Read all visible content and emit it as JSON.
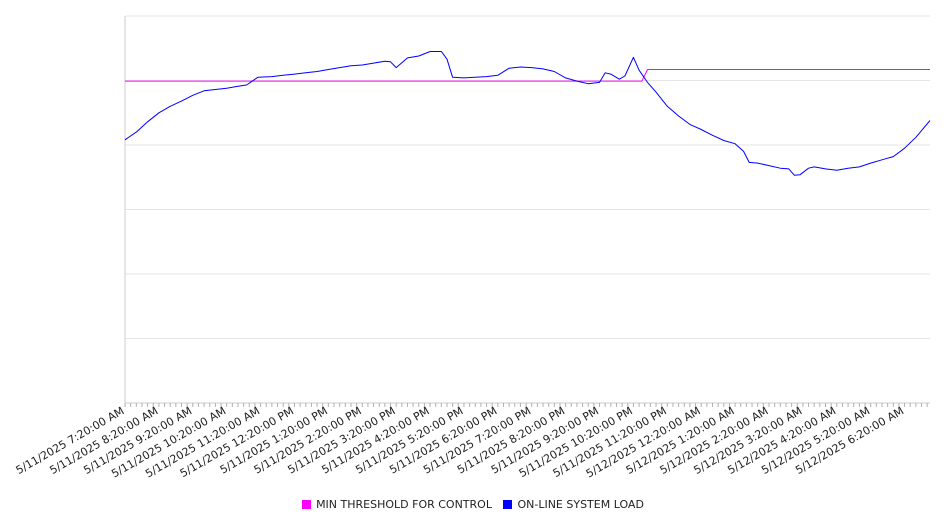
{
  "chart_data": {
    "type": "line",
    "title": "",
    "xlabel": "",
    "ylabel": "",
    "grid": true,
    "legend_position": "bottom",
    "x_start": "5/11/2025 7:20:00 AM",
    "x_end": "5/12/2025 7:05:00 AM",
    "x_tick_labels": [
      "5/11/2025 7:20:00 AM",
      "5/11/2025 8:20:00 AM",
      "5/11/2025 9:20:00 AM",
      "5/11/2025 10:20:00 AM",
      "5/11/2025 11:20:00 AM",
      "5/11/2025 12:20:00 PM",
      "5/11/2025 1:20:00 PM",
      "5/11/2025 2:20:00 PM",
      "5/11/2025 3:20:00 PM",
      "5/11/2025 4:20:00 PM",
      "5/11/2025 5:20:00 PM",
      "5/11/2025 6:20:00 PM",
      "5/11/2025 7:20:00 PM",
      "5/11/2025 8:20:00 PM",
      "5/11/2025 9:20:00 PM",
      "5/11/2025 10:20:00 PM",
      "5/11/2025 11:20:00 PM",
      "5/12/2025 12:20:00 AM",
      "5/12/2025 1:20:00 AM",
      "5/12/2025 2:20:00 AM",
      "5/12/2025 3:20:00 AM",
      "5/12/2025 4:20:00 AM",
      "5/12/2025 5:20:00 AM",
      "5/12/2025 6:20:00 AM"
    ],
    "ylim": [
      0,
      6
    ],
    "series": [
      {
        "name": "MIN THRESHOLD FOR CONTROL",
        "color": "#ff00ff",
        "points": [
          [
            "5/11/2025 7:20:00 AM",
            4.99
          ],
          [
            "5/11/2025 10:35:00 PM",
            4.99
          ],
          [
            "5/11/2025 10:45:00 PM",
            5.17
          ],
          [
            "5/12/2025 7:05:00 AM",
            5.17
          ]
        ]
      },
      {
        "name": "ON-LINE SYSTEM LOAD",
        "color": "#0000ff",
        "points": [
          [
            "5/11/2025 7:20:00 AM",
            4.08
          ],
          [
            "5/11/2025 7:40:00 AM",
            4.2
          ],
          [
            "5/11/2025 8:00:00 AM",
            4.36
          ],
          [
            "5/11/2025 8:20:00 AM",
            4.5
          ],
          [
            "5/11/2025 8:40:00 AM",
            4.6
          ],
          [
            "5/11/2025 9:00:00 AM",
            4.68
          ],
          [
            "5/11/2025 9:20:00 AM",
            4.77
          ],
          [
            "5/11/2025 9:40:00 AM",
            4.84
          ],
          [
            "5/11/2025 10:00:00 AM",
            4.86
          ],
          [
            "5/11/2025 10:20:00 AM",
            4.88
          ],
          [
            "5/11/2025 10:40:00 AM",
            4.91
          ],
          [
            "5/11/2025 10:55:00 AM",
            4.93
          ],
          [
            "5/11/2025 11:15:00 AM",
            5.05
          ],
          [
            "5/11/2025 11:40:00 AM",
            5.06
          ],
          [
            "5/11/2025 12:00:00 PM",
            5.08
          ],
          [
            "5/11/2025 12:20:00 PM",
            5.1
          ],
          [
            "5/11/2025 12:40:00 PM",
            5.12
          ],
          [
            "5/11/2025 1:00:00 PM",
            5.14
          ],
          [
            "5/11/2025 1:20:00 PM",
            5.17
          ],
          [
            "5/11/2025 1:40:00 PM",
            5.2
          ],
          [
            "5/11/2025 2:00:00 PM",
            5.23
          ],
          [
            "5/11/2025 2:20:00 PM",
            5.24
          ],
          [
            "5/11/2025 2:40:00 PM",
            5.27
          ],
          [
            "5/11/2025 3:00:00 PM",
            5.3
          ],
          [
            "5/11/2025 3:10:00 PM",
            5.29
          ],
          [
            "5/11/2025 3:20:00 PM",
            5.2
          ],
          [
            "5/11/2025 3:40:00 PM",
            5.35
          ],
          [
            "5/11/2025 4:00:00 PM",
            5.38
          ],
          [
            "5/11/2025 4:20:00 PM",
            5.45
          ],
          [
            "5/11/2025 4:40:00 PM",
            5.45
          ],
          [
            "5/11/2025 4:50:00 PM",
            5.33
          ],
          [
            "5/11/2025 5:00:00 PM",
            5.05
          ],
          [
            "5/11/2025 5:20:00 PM",
            5.04
          ],
          [
            "5/11/2025 5:40:00 PM",
            5.05
          ],
          [
            "5/11/2025 6:00:00 PM",
            5.06
          ],
          [
            "5/11/2025 6:20:00 PM",
            5.08
          ],
          [
            "5/11/2025 6:40:00 PM",
            5.19
          ],
          [
            "5/11/2025 7:00:00 PM",
            5.21
          ],
          [
            "5/11/2025 7:20:00 PM",
            5.2
          ],
          [
            "5/11/2025 7:40:00 PM",
            5.18
          ],
          [
            "5/11/2025 8:00:00 PM",
            5.14
          ],
          [
            "5/11/2025 8:20:00 PM",
            5.04
          ],
          [
            "5/11/2025 8:40:00 PM",
            4.99
          ],
          [
            "5/11/2025 9:00:00 PM",
            4.95
          ],
          [
            "5/11/2025 9:20:00 PM",
            4.97
          ],
          [
            "5/11/2025 9:30:00 PM",
            5.12
          ],
          [
            "5/11/2025 9:40:00 PM",
            5.1
          ],
          [
            "5/11/2025 9:55:00 PM",
            5.02
          ],
          [
            "5/11/2025 10:05:00 PM",
            5.07
          ],
          [
            "5/11/2025 10:20:00 PM",
            5.36
          ],
          [
            "5/11/2025 10:30:00 PM",
            5.16
          ],
          [
            "5/11/2025 10:45:00 PM",
            4.97
          ],
          [
            "5/11/2025 11:00:00 PM",
            4.82
          ],
          [
            "5/11/2025 11:20:00 PM",
            4.6
          ],
          [
            "5/11/2025 11:40:00 PM",
            4.45
          ],
          [
            "5/12/2025 12:00:00 AM",
            4.32
          ],
          [
            "5/12/2025 12:20:00 AM",
            4.24
          ],
          [
            "5/12/2025 12:40:00 AM",
            4.15
          ],
          [
            "5/12/2025 1:00:00 AM",
            4.07
          ],
          [
            "5/12/2025 1:20:00 AM",
            4.02
          ],
          [
            "5/12/2025 1:35:00 AM",
            3.9
          ],
          [
            "5/12/2025 1:45:00 AM",
            3.73
          ],
          [
            "5/12/2025 2:00:00 AM",
            3.72
          ],
          [
            "5/12/2025 2:20:00 AM",
            3.68
          ],
          [
            "5/12/2025 2:40:00 AM",
            3.64
          ],
          [
            "5/12/2025 2:55:00 AM",
            3.63
          ],
          [
            "5/12/2025 3:05:00 AM",
            3.53
          ],
          [
            "5/12/2025 3:15:00 AM",
            3.54
          ],
          [
            "5/12/2025 3:30:00 AM",
            3.64
          ],
          [
            "5/12/2025 3:40:00 AM",
            3.66
          ],
          [
            "5/12/2025 4:00:00 AM",
            3.63
          ],
          [
            "5/12/2025 4:20:00 AM",
            3.61
          ],
          [
            "5/12/2025 4:40:00 AM",
            3.64
          ],
          [
            "5/12/2025 5:00:00 AM",
            3.66
          ],
          [
            "5/12/2025 5:20:00 AM",
            3.72
          ],
          [
            "5/12/2025 5:40:00 AM",
            3.77
          ],
          [
            "5/12/2025 6:00:00 AM",
            3.82
          ],
          [
            "5/12/2025 6:20:00 AM",
            3.95
          ],
          [
            "5/12/2025 6:40:00 AM",
            4.12
          ],
          [
            "5/12/2025 7:05:00 AM",
            4.38
          ]
        ]
      }
    ]
  }
}
